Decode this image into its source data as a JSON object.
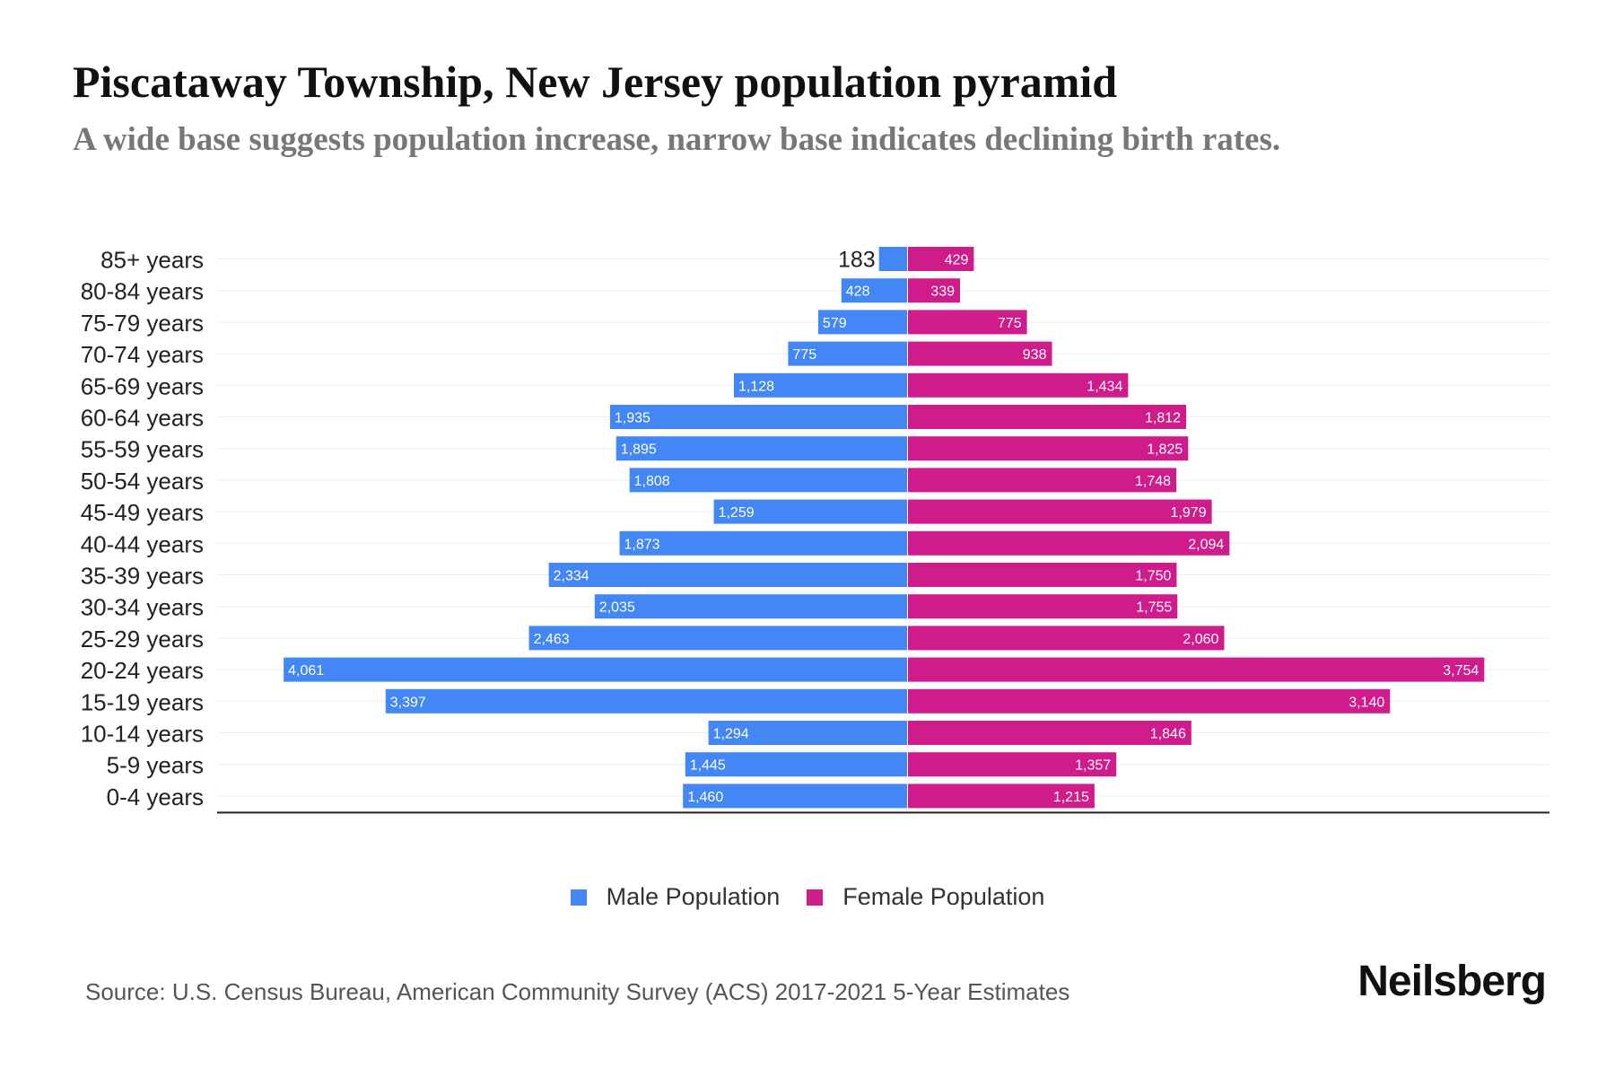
{
  "title": "Piscataway Township, New Jersey population pyramid",
  "subtitle": "A wide base suggests population increase, narrow base indicates declining birth rates.",
  "source": "Source: U.S. Census Bureau, American Community Survey (ACS) 2017-2021 5-Year Estimates",
  "logo": "Neilsberg",
  "colors": {
    "male": "#4287f5",
    "female": "#d01c8b"
  },
  "chart_data": {
    "type": "bar",
    "orientation": "horizontal-pyramid",
    "title": "Piscataway Township, New Jersey population pyramid",
    "categories": [
      "85+ years",
      "80-84 years",
      "75-79 years",
      "70-74 years",
      "65-69 years",
      "60-64 years",
      "55-59 years",
      "50-54 years",
      "45-49 years",
      "40-44 years",
      "35-39 years",
      "30-34 years",
      "25-29 years",
      "20-24 years",
      "15-19 years",
      "10-14 years",
      "5-9 years",
      "0-4 years"
    ],
    "series": [
      {
        "name": "Male Population",
        "values": [
          183,
          428,
          579,
          775,
          1128,
          1935,
          1895,
          1808,
          1259,
          1873,
          2334,
          2035,
          2463,
          4061,
          3397,
          1294,
          1445,
          1460
        ]
      },
      {
        "name": "Female Population",
        "values": [
          429,
          339,
          775,
          938,
          1434,
          1812,
          1825,
          1748,
          1979,
          2094,
          1750,
          1755,
          2060,
          3754,
          3140,
          1846,
          1357,
          1215
        ]
      }
    ],
    "labels": {
      "male": [
        "183",
        "428",
        "579",
        "775",
        "1,128",
        "1,935",
        "1,895",
        "1,808",
        "1,259",
        "1,873",
        "2,334",
        "2,035",
        "2,463",
        "4,061",
        "3,397",
        "1,294",
        "1,445",
        "1,460"
      ],
      "female": [
        "429",
        "339",
        "775",
        "938",
        "1,434",
        "1,812",
        "1,825",
        "1,748",
        "1,979",
        "2,094",
        "1,750",
        "1,755",
        "2,060",
        "3,754",
        "3,140",
        "1,846",
        "1,357",
        "1,215"
      ]
    },
    "xlim": [
      -4500,
      4500
    ],
    "grid": true,
    "legend_position": "bottom-center"
  }
}
